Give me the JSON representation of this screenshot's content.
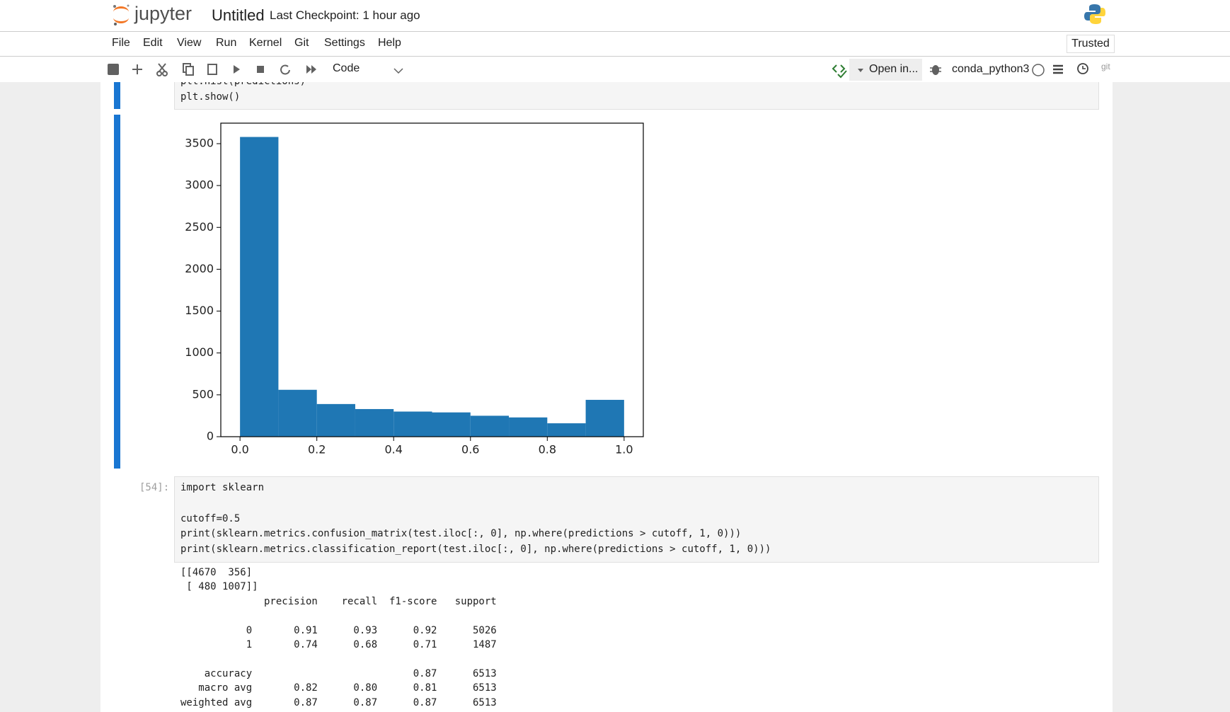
{
  "header": {
    "logo": "jupyter",
    "title": "Untitled",
    "checkpoint": "Last Checkpoint: 1 hour ago"
  },
  "menu": [
    "File",
    "Edit",
    "View",
    "Run",
    "Kernel",
    "Git",
    "Settings",
    "Help"
  ],
  "trusted": "Trusted",
  "toolbar": {
    "cell_type": "Code",
    "open_in": "Open in...",
    "kernel": "conda_python3",
    "git": "git"
  },
  "cells": [
    {
      "code": [
        "plt.hist(predictions)",
        "plt.show()"
      ]
    },
    {
      "prompt": "[54]:",
      "code": [
        "import sklearn",
        "cutoff=0.5",
        "print(sklearn.metrics.confusion_matrix(test.iloc[:, 0], np.where(predictions > cutoff, 1, 0)))",
        "print(sklearn.metrics.classification_report(test.iloc[:, 0], np.where(predictions > cutoff, 1, 0)))"
      ],
      "output": [
        "[[4670  356]",
        " [ 480 1007]]",
        "              precision    recall  f1-score   support",
        "           0       0.91      0.93      0.92      5026",
        "           1       0.74      0.68      0.71      1487",
        "    accuracy                           0.87      6513",
        "   macro avg       0.82      0.80      0.81      6513",
        "weighted avg       0.87      0.87      0.87      6513"
      ]
    }
  ],
  "chart_data": {
    "type": "histogram",
    "color": "#1f77b4",
    "bins": [
      0,
      0.1,
      0.2,
      0.3,
      0.4,
      0.5,
      0.6,
      0.7,
      0.8,
      0.9,
      1.0
    ],
    "values": [
      3580,
      560,
      390,
      330,
      300,
      290,
      250,
      230,
      160,
      440
    ],
    "xlim": [
      -0.05,
      1.05
    ],
    "ylim": [
      0,
      3745
    ],
    "xticks": [
      {
        "value": 0,
        "label": "0.0"
      },
      0.2,
      0.4,
      0.6,
      0.8,
      {
        "value": 1,
        "label": "1.0"
      }
    ],
    "yticks": [
      0,
      500,
      1000,
      1500,
      2000,
      2500,
      3000,
      3500
    ]
  }
}
